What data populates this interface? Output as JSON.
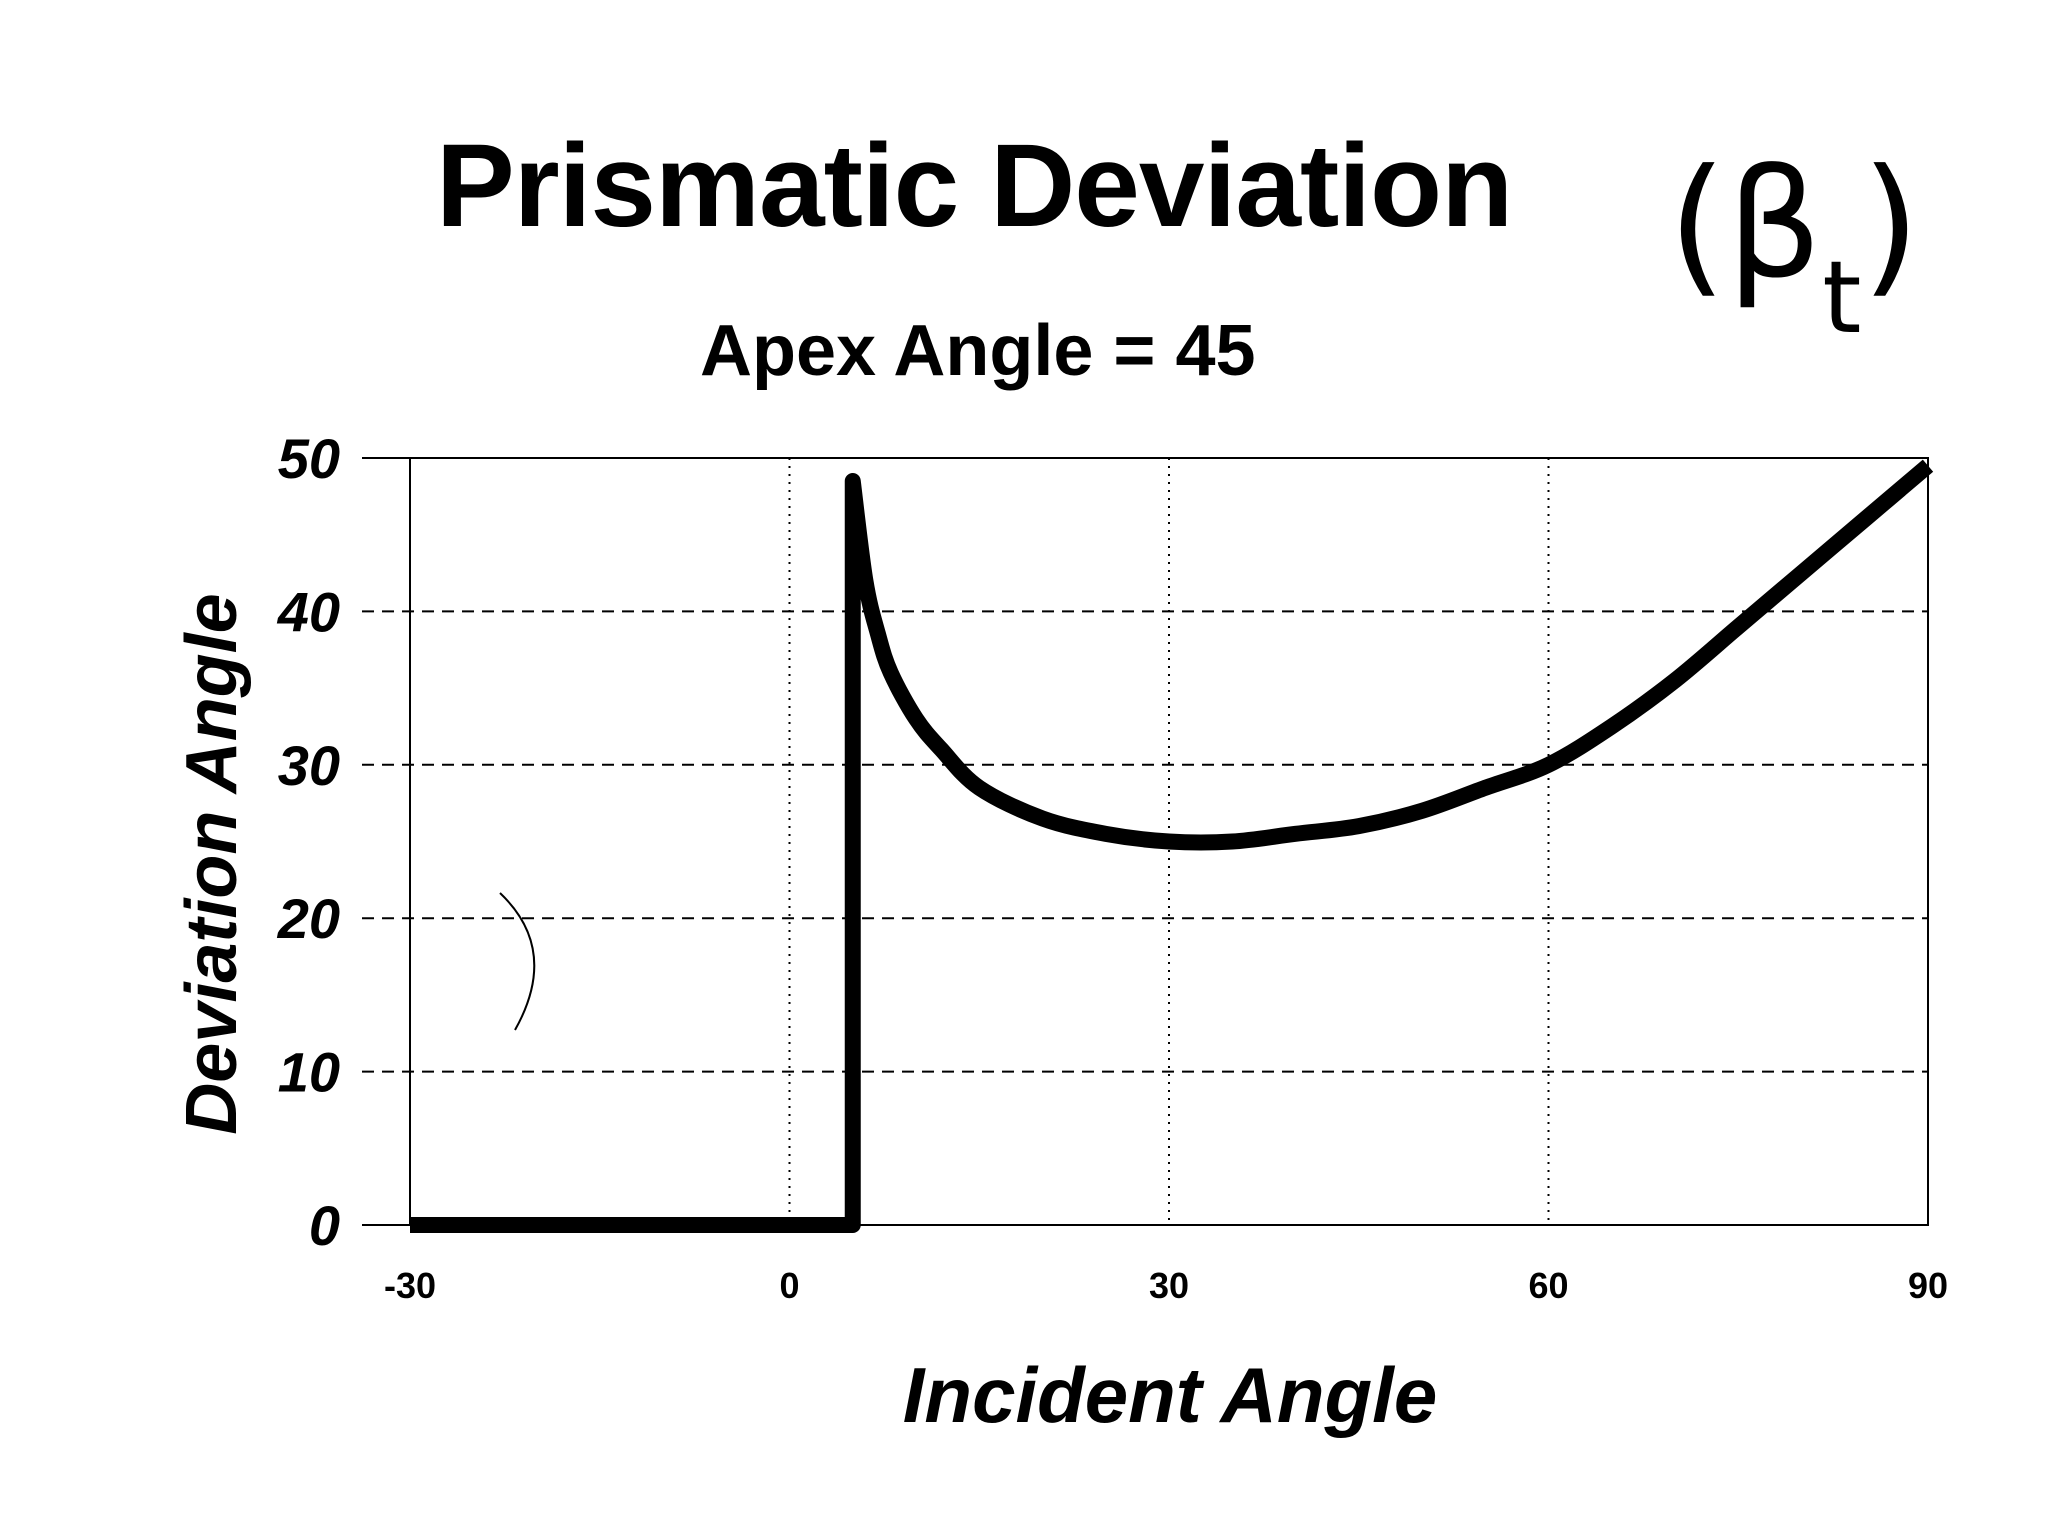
{
  "chart_data": {
    "type": "line",
    "title": "Prismatic Deviation",
    "title_symbol": "(β",
    "title_symbol_subscript": "t",
    "title_symbol_close": ")",
    "subtitle": "Apex Angle = 45",
    "xlabel": "Incident Angle",
    "ylabel": "Deviation Angle",
    "xlim": [
      -30,
      90
    ],
    "ylim": [
      0,
      50
    ],
    "xticks": [
      -30,
      0,
      30,
      60,
      90
    ],
    "yticks": [
      0,
      10,
      20,
      30,
      40,
      50
    ],
    "grid": {
      "y": "dashed",
      "x": "dotted"
    },
    "legend": "none",
    "series": [
      {
        "color": "#000000",
        "x": [
          -30,
          5,
          5,
          6,
          7,
          8,
          10,
          12,
          15,
          20,
          25,
          30,
          35,
          40,
          45,
          50,
          55,
          60,
          65,
          70,
          75,
          80,
          85,
          90
        ],
        "y": [
          0,
          0,
          48.5,
          42,
          38.5,
          36,
          33,
          31,
          28.5,
          26.5,
          25.5,
          25,
          25,
          25.5,
          26,
          27,
          28.5,
          30,
          32.5,
          35.5,
          39,
          42.5,
          46,
          49.5
        ]
      }
    ]
  }
}
